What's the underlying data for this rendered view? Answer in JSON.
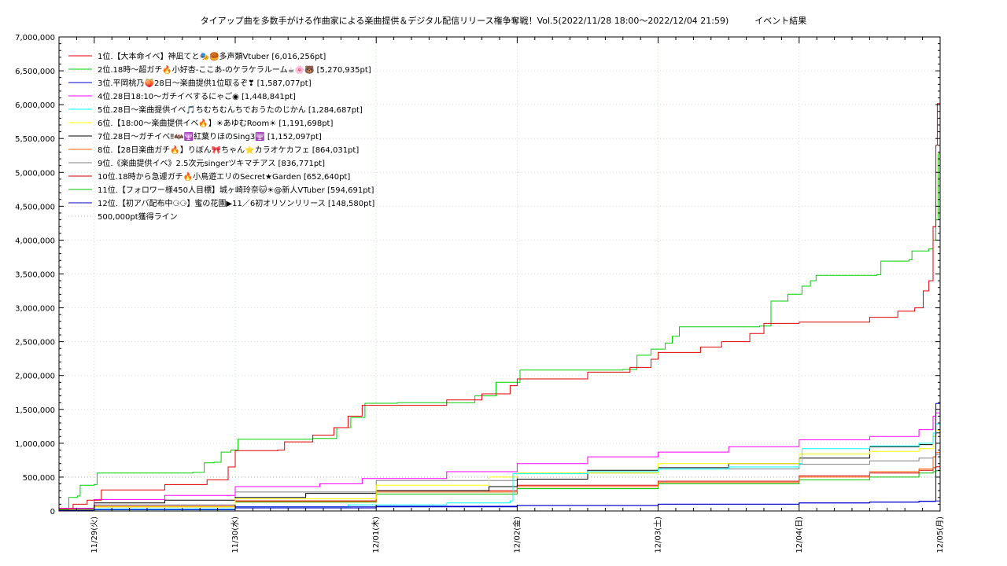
{
  "chart_data": {
    "type": "line",
    "title": "タイアップ曲を多数手がける作曲家による楽曲提供＆デジタル配信リリース権争奪戦！Vol.5(2022/11/28 18:00～2022/12/04 21:59)　　　イベント結果",
    "xlabel": "",
    "ylabel": "",
    "ylim": [
      0,
      7000000
    ],
    "xlim": [
      -0.25,
      6.0
    ],
    "x_tick_labels": [
      "11/29(火)",
      "11/30(水)",
      "12/01(木)",
      "12/02(金)",
      "12/03(土)",
      "12/04(日)",
      "12/05(月)"
    ],
    "x_tick_values": [
      0,
      1,
      2,
      3,
      4,
      5,
      6
    ],
    "y_tick_values": [
      0,
      500000,
      1000000,
      1500000,
      2000000,
      2500000,
      3000000,
      3500000,
      4000000,
      4500000,
      5000000,
      5500000,
      6000000,
      6500000,
      7000000
    ],
    "y_tick_labels": [
      "0",
      "500,000",
      "1,000,000",
      "1,500,000",
      "2,000,000",
      "2,500,000",
      "3,000,000",
      "3,500,000",
      "4,000,000",
      "4,500,000",
      "5,000,000",
      "5,500,000",
      "6,000,000",
      "6,500,000",
      "7,000,000"
    ],
    "grid": true,
    "legend_position": "top-left",
    "series": [
      {
        "name": "1位.【大本命イベ】神凪てと🎭🥮多声類Vtuber [6,016,256pt]",
        "color": "#e00000",
        "points": [
          [
            -0.25,
            30000
          ],
          [
            -0.15,
            100000
          ],
          [
            -0.05,
            160000
          ],
          [
            0.05,
            310000
          ],
          [
            0.5,
            390000
          ],
          [
            0.8,
            460000
          ],
          [
            0.95,
            650000
          ],
          [
            1.0,
            890000
          ],
          [
            1.3,
            900000
          ],
          [
            1.35,
            1020000
          ],
          [
            1.55,
            1120000
          ],
          [
            1.7,
            1230000
          ],
          [
            1.8,
            1400000
          ],
          [
            1.9,
            1560000
          ],
          [
            2.5,
            1640000
          ],
          [
            2.75,
            1730000
          ],
          [
            2.95,
            1850000
          ],
          [
            3.0,
            1950000
          ],
          [
            3.5,
            2050000
          ],
          [
            3.8,
            2120000
          ],
          [
            3.95,
            2240000
          ],
          [
            4.0,
            2340000
          ],
          [
            4.3,
            2420000
          ],
          [
            4.45,
            2500000
          ],
          [
            4.65,
            2620000
          ],
          [
            4.75,
            2770000
          ],
          [
            5.0,
            2790000
          ],
          [
            5.5,
            2860000
          ],
          [
            5.7,
            2950000
          ],
          [
            5.82,
            3000000
          ],
          [
            5.88,
            3250000
          ],
          [
            5.92,
            3400000
          ],
          [
            5.95,
            4200000
          ],
          [
            5.97,
            5400000
          ],
          [
            5.98,
            6016256
          ],
          [
            6.0,
            6016256
          ]
        ]
      },
      {
        "name": "2位.18時～超ガチ🔥小好杏-ここあ-のケラケラルーム☕🌸🐻 [5,270,935pt]",
        "color": "#00d000",
        "points": [
          [
            -0.25,
            20000
          ],
          [
            -0.18,
            200000
          ],
          [
            -0.12,
            220000
          ],
          [
            -0.1,
            380000
          ],
          [
            0.0,
            390000
          ],
          [
            0.02,
            560000
          ],
          [
            0.7,
            570000
          ],
          [
            0.78,
            710000
          ],
          [
            0.85,
            720000
          ],
          [
            0.9,
            870000
          ],
          [
            0.97,
            900000
          ],
          [
            1.02,
            1060000
          ],
          [
            1.55,
            1070000
          ],
          [
            1.72,
            1230000
          ],
          [
            1.82,
            1380000
          ],
          [
            1.92,
            1590000
          ],
          [
            2.15,
            1600000
          ],
          [
            2.7,
            1700000
          ],
          [
            2.85,
            1900000
          ],
          [
            3.02,
            2080000
          ],
          [
            3.75,
            2090000
          ],
          [
            3.85,
            2300000
          ],
          [
            3.95,
            2390000
          ],
          [
            4.05,
            2480000
          ],
          [
            4.1,
            2580000
          ],
          [
            4.15,
            2720000
          ],
          [
            4.72,
            2730000
          ],
          [
            4.8,
            3100000
          ],
          [
            4.92,
            3200000
          ],
          [
            5.02,
            3320000
          ],
          [
            5.08,
            3400000
          ],
          [
            5.12,
            3480000
          ],
          [
            5.55,
            3490000
          ],
          [
            5.58,
            3690000
          ],
          [
            5.78,
            3710000
          ],
          [
            5.8,
            3840000
          ],
          [
            5.92,
            3870000
          ],
          [
            5.95,
            4000000
          ],
          [
            5.97,
            4300000
          ],
          [
            5.985,
            5270935
          ],
          [
            6.0,
            5270935
          ]
        ]
      },
      {
        "name": "3位.平岡桃乃🍑28日～楽曲提供1位取るぞ❣ [1,587,077pt]",
        "color": "#0000d0",
        "points": [
          [
            -0.25,
            10000
          ],
          [
            0.0,
            20000
          ],
          [
            1.0,
            60000
          ],
          [
            2.0,
            70000
          ],
          [
            3.0,
            80000
          ],
          [
            4.0,
            100000
          ],
          [
            5.0,
            120000
          ],
          [
            5.5,
            130000
          ],
          [
            5.85,
            140000
          ],
          [
            5.95,
            140000
          ],
          [
            5.97,
            1587077
          ],
          [
            6.0,
            1587077
          ]
        ]
      },
      {
        "name": "4位.28日18:10～ガチイベするにゃご◉ [1,448,841pt]",
        "color": "#ff00ff",
        "points": [
          [
            -0.25,
            40000
          ],
          [
            0.0,
            170000
          ],
          [
            0.5,
            230000
          ],
          [
            1.0,
            360000
          ],
          [
            1.6,
            400000
          ],
          [
            1.9,
            480000
          ],
          [
            2.5,
            580000
          ],
          [
            3.0,
            700000
          ],
          [
            3.5,
            800000
          ],
          [
            4.0,
            870000
          ],
          [
            4.5,
            950000
          ],
          [
            5.0,
            1050000
          ],
          [
            5.5,
            1100000
          ],
          [
            5.85,
            1200000
          ],
          [
            5.95,
            1400000
          ],
          [
            5.97,
            1448841
          ],
          [
            6.0,
            1448841
          ]
        ]
      },
      {
        "name": "5位.28日～楽曲提供イベ🎵ちむちむんちでおうたのじかん [1,284,687pt]",
        "color": "#00ffff",
        "points": [
          [
            -0.25,
            10000
          ],
          [
            0.0,
            30000
          ],
          [
            1.0,
            60000
          ],
          [
            1.8,
            90000
          ],
          [
            2.5,
            120000
          ],
          [
            2.95,
            150000
          ],
          [
            2.97,
            550000
          ],
          [
            3.5,
            580000
          ],
          [
            4.0,
            620000
          ],
          [
            4.5,
            650000
          ],
          [
            5.0,
            700000
          ],
          [
            5.02,
            920000
          ],
          [
            5.5,
            960000
          ],
          [
            5.85,
            1000000
          ],
          [
            5.95,
            1150000
          ],
          [
            5.97,
            1284687
          ],
          [
            6.0,
            1284687
          ]
        ]
      },
      {
        "name": "6位.【18:00～楽曲提供イベ🔥】☀あゆむRoom☀ [1,191,698pt]",
        "color": "#ffff00",
        "points": [
          [
            -0.25,
            20000
          ],
          [
            0.0,
            60000
          ],
          [
            1.0,
            180000
          ],
          [
            2.0,
            380000
          ],
          [
            2.8,
            500000
          ],
          [
            3.0,
            560000
          ],
          [
            4.0,
            700000
          ],
          [
            5.0,
            840000
          ],
          [
            5.5,
            880000
          ],
          [
            5.85,
            920000
          ],
          [
            5.95,
            1100000
          ],
          [
            5.97,
            1191698
          ],
          [
            6.0,
            1191698
          ]
        ]
      },
      {
        "name": "7位.28日～ガチイベ‼🦇🕎紅葉りほのSing3🕎 [1,152,097pt]",
        "color": "#000000",
        "points": [
          [
            -0.25,
            30000
          ],
          [
            0.0,
            120000
          ],
          [
            0.5,
            160000
          ],
          [
            1.0,
            200000
          ],
          [
            1.5,
            260000
          ],
          [
            2.0,
            300000
          ],
          [
            2.8,
            360000
          ],
          [
            3.0,
            470000
          ],
          [
            3.5,
            600000
          ],
          [
            4.0,
            640000
          ],
          [
            4.5,
            700000
          ],
          [
            5.0,
            780000
          ],
          [
            5.5,
            950000
          ],
          [
            5.85,
            980000
          ],
          [
            5.95,
            1100000
          ],
          [
            5.97,
            1152097
          ],
          [
            6.0,
            1152097
          ]
        ]
      },
      {
        "name": "8位.【28日楽曲ガチ🔥】りぼん🎀ちゃん⭐カラオケカフェ [864,031pt]",
        "color": "#ff6000",
        "points": [
          [
            -0.25,
            20000
          ],
          [
            0.0,
            60000
          ],
          [
            1.0,
            140000
          ],
          [
            2.0,
            280000
          ],
          [
            3.0,
            360000
          ],
          [
            4.0,
            420000
          ],
          [
            5.0,
            500000
          ],
          [
            5.5,
            580000
          ],
          [
            5.85,
            620000
          ],
          [
            5.95,
            800000
          ],
          [
            5.97,
            864031
          ],
          [
            6.0,
            864031
          ]
        ]
      },
      {
        "name": "9位.《楽曲提供イベ》2.5次元singerツキマチアス [836,771pt]",
        "color": "#808080",
        "points": [
          [
            -0.25,
            30000
          ],
          [
            0.0,
            90000
          ],
          [
            1.0,
            280000
          ],
          [
            2.0,
            450000
          ],
          [
            3.0,
            560000
          ],
          [
            4.0,
            620000
          ],
          [
            5.0,
            690000
          ],
          [
            5.5,
            740000
          ],
          [
            5.85,
            780000
          ],
          [
            5.95,
            800000
          ],
          [
            5.97,
            836771
          ],
          [
            6.0,
            836771
          ]
        ]
      },
      {
        "name": "10位.18時から急遽ガチ🔥小鳥遊エリのSecret★Garden [652,640pt]",
        "color": "#d00000",
        "points": [
          [
            -0.25,
            20000
          ],
          [
            0.0,
            70000
          ],
          [
            1.0,
            150000
          ],
          [
            2.0,
            300000
          ],
          [
            3.0,
            380000
          ],
          [
            4.0,
            440000
          ],
          [
            5.0,
            520000
          ],
          [
            5.5,
            560000
          ],
          [
            5.85,
            600000
          ],
          [
            5.95,
            640000
          ],
          [
            5.97,
            652640
          ],
          [
            6.0,
            652640
          ]
        ]
      },
      {
        "name": "11位.【フォロワー様450人目標】城ヶ崎玲奈🐱☀@新人VTuber [594,691pt]",
        "color": "#00c000",
        "points": [
          [
            -0.25,
            20000
          ],
          [
            0.0,
            60000
          ],
          [
            1.0,
            130000
          ],
          [
            2.0,
            250000
          ],
          [
            3.0,
            330000
          ],
          [
            4.0,
            400000
          ],
          [
            5.0,
            460000
          ],
          [
            5.5,
            500000
          ],
          [
            5.85,
            560000
          ],
          [
            5.95,
            580000
          ],
          [
            5.97,
            594691
          ],
          [
            6.0,
            594691
          ]
        ]
      },
      {
        "name": "12位.【初アバ配布中⚆⚆】蜜の花園▶11／6初オリソンリリース [148,580pt]",
        "color": "#0000c0",
        "points": [
          [
            -0.25,
            5000
          ],
          [
            0.0,
            20000
          ],
          [
            1.0,
            45000
          ],
          [
            2.0,
            60000
          ],
          [
            3.0,
            80000
          ],
          [
            4.0,
            100000
          ],
          [
            5.0,
            120000
          ],
          [
            5.5,
            130000
          ],
          [
            5.85,
            145000
          ],
          [
            5.97,
            148580
          ],
          [
            6.0,
            148580
          ]
        ]
      }
    ],
    "reference_line": {
      "name": "500,000pt獲得ライン",
      "value": 500000,
      "color": "#ff9090",
      "style": "dotted"
    }
  }
}
